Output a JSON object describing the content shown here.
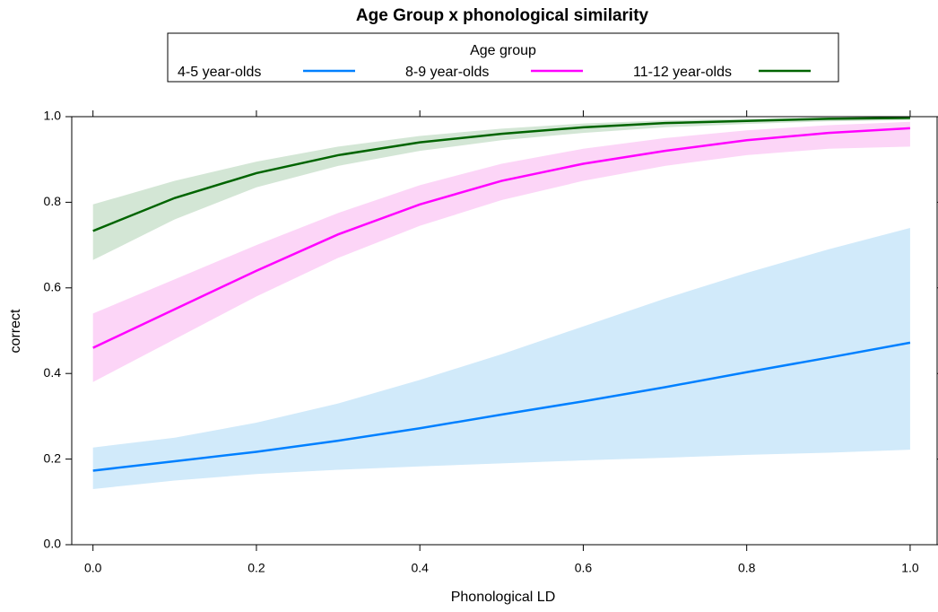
{
  "chart_data": {
    "type": "line",
    "title": "Age Group x phonological similarity",
    "x_label": "Phonological LD",
    "y_label": "correct",
    "legend_title": "Age group",
    "legend_position": "top",
    "x": [
      0,
      0.1,
      0.2,
      0.3,
      0.4,
      0.5,
      0.6,
      0.7,
      0.8,
      0.9,
      1
    ],
    "series": [
      {
        "name": "4-5 year-olds",
        "color": "#0080ff",
        "band_color": "#d1eafa",
        "values": [
          0.173,
          0.195,
          0.217,
          0.243,
          0.272,
          0.304,
          0.335,
          0.368,
          0.403,
          0.437,
          0.472
        ],
        "lower": [
          0.13,
          0.15,
          0.165,
          0.175,
          0.183,
          0.19,
          0.197,
          0.203,
          0.21,
          0.215,
          0.222
        ],
        "upper": [
          0.227,
          0.25,
          0.285,
          0.33,
          0.385,
          0.445,
          0.51,
          0.575,
          0.635,
          0.69,
          0.74
        ]
      },
      {
        "name": "8-9 year-olds",
        "color": "#ff00ff",
        "band_color": "#fcd5f7",
        "values": [
          0.46,
          0.55,
          0.64,
          0.725,
          0.795,
          0.85,
          0.89,
          0.92,
          0.945,
          0.962,
          0.973
        ],
        "lower": [
          0.38,
          0.48,
          0.58,
          0.67,
          0.745,
          0.805,
          0.85,
          0.885,
          0.91,
          0.925,
          0.93
        ],
        "upper": [
          0.54,
          0.62,
          0.7,
          0.775,
          0.84,
          0.89,
          0.925,
          0.95,
          0.968,
          0.98,
          0.988
        ]
      },
      {
        "name": "11-12 year-olds",
        "color": "#006400",
        "band_color": "#d3e6d5",
        "values": [
          0.733,
          0.81,
          0.868,
          0.91,
          0.94,
          0.96,
          0.975,
          0.985,
          0.99,
          0.995,
          0.997
        ],
        "lower": [
          0.665,
          0.76,
          0.835,
          0.885,
          0.92,
          0.945,
          0.962,
          0.975,
          0.983,
          0.989,
          0.992
        ],
        "upper": [
          0.795,
          0.85,
          0.895,
          0.93,
          0.955,
          0.972,
          0.984,
          0.991,
          0.995,
          0.998,
          0.999
        ]
      }
    ],
    "xlim": [
      -0.026,
      1.033
    ],
    "ylim": [
      0,
      1
    ],
    "xticks": [
      {
        "value": 0,
        "label": "0.0"
      },
      0.2,
      0.4,
      0.6,
      0.8,
      {
        "value": 1,
        "label": "1.0"
      }
    ],
    "yticks": [
      {
        "value": 0,
        "label": "0.0"
      },
      0.2,
      0.4,
      0.6,
      0.8,
      {
        "value": 1,
        "label": "1.0"
      }
    ]
  }
}
